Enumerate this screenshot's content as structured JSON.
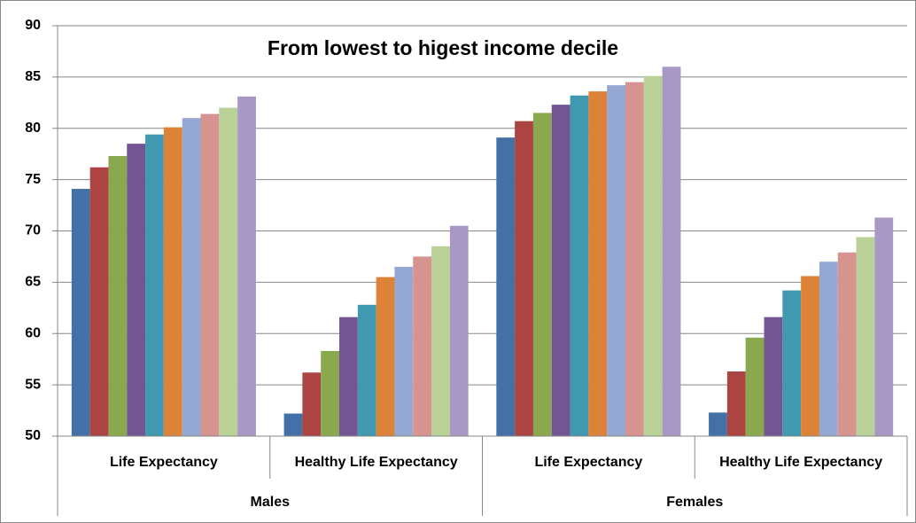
{
  "chart_data": {
    "type": "bar",
    "title": "From lowest to higest income decile",
    "categories": [
      "Life Expectancy",
      "Healthy Life Expectancy",
      "Life Expectancy",
      "Healthy Life Expectancy"
    ],
    "groups": [
      "Males",
      "Females"
    ],
    "series": [
      {
        "color": "#4470a8",
        "values": [
          74.1,
          52.2,
          79.1,
          52.3
        ]
      },
      {
        "color": "#ac4442",
        "values": [
          76.2,
          56.2,
          80.7,
          56.3
        ]
      },
      {
        "color": "#8aa84d",
        "values": [
          77.3,
          58.3,
          81.5,
          59.6
        ]
      },
      {
        "color": "#725592",
        "values": [
          78.5,
          61.6,
          82.3,
          61.6
        ]
      },
      {
        "color": "#4199b1",
        "values": [
          79.4,
          62.8,
          83.2,
          64.2
        ]
      },
      {
        "color": "#dd8338",
        "values": [
          80.1,
          65.5,
          83.6,
          65.6
        ]
      },
      {
        "color": "#94a8d3",
        "values": [
          81.0,
          66.5,
          84.2,
          67.0
        ]
      },
      {
        "color": "#d79390",
        "values": [
          81.4,
          67.5,
          84.5,
          67.9
        ]
      },
      {
        "color": "#b9d196",
        "values": [
          82.0,
          68.5,
          85.1,
          69.4
        ]
      },
      {
        "color": "#a899c4",
        "values": [
          83.1,
          70.5,
          86.0,
          71.3
        ]
      }
    ],
    "ylim": [
      50,
      90
    ],
    "yticks": [
      50,
      55,
      60,
      65,
      70,
      75,
      80,
      85,
      90
    ],
    "grid": true
  }
}
